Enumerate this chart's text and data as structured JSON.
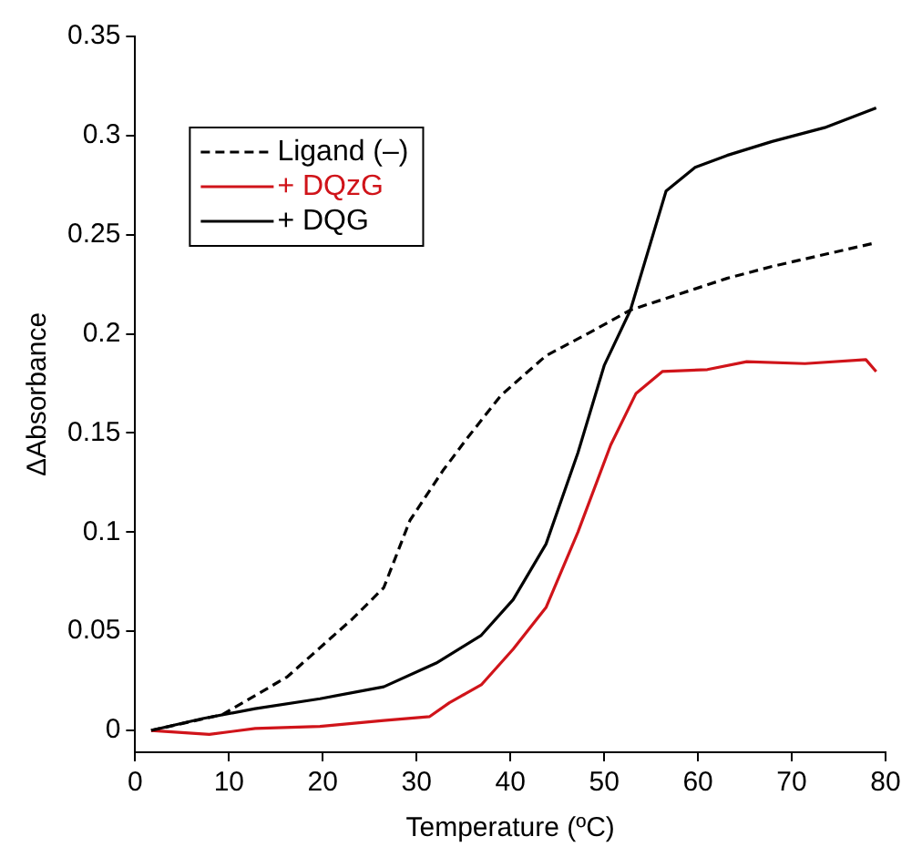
{
  "chart_data": {
    "type": "line",
    "xlabel": "Temperature (ºC)",
    "ylabel": "ΔAbsorbance",
    "xlim": [
      0,
      80
    ],
    "xticks": [
      0,
      10,
      20,
      30,
      40,
      50,
      60,
      70,
      80
    ],
    "ylim": [
      -0.011,
      0.35
    ],
    "yticks": [
      0,
      0.05,
      0.1,
      0.15,
      0.2,
      0.25,
      0.3,
      0.35
    ],
    "grid": false,
    "legend": "top left",
    "marker": "none",
    "series": [
      {
        "name": "Ligand (–)",
        "color": "#000000",
        "line_style": "dashed",
        "x": [
          1.7,
          9.3,
          16.2,
          23.1,
          26.5,
          29.3,
          32.8,
          35.5,
          39,
          43.8,
          48.6,
          52.8,
          63.1,
          67.9,
          79
        ],
        "values": [
          0,
          0.008,
          0.027,
          0.056,
          0.072,
          0.106,
          0.131,
          0.148,
          0.169,
          0.189,
          0.201,
          0.212,
          0.228,
          0.234,
          0.246
        ]
      },
      {
        "name": "+ DQzG",
        "color": "#d0141a",
        "line_style": "solid",
        "x": [
          1.7,
          7.9,
          12.8,
          19.7,
          26.5,
          31.4,
          33.5,
          36.9,
          40.3,
          43.8,
          47.2,
          50.7,
          53.4,
          56.2,
          61,
          65.2,
          71.4,
          77.9,
          79
        ],
        "values": [
          0,
          -0.002,
          0.001,
          0.002,
          0.005,
          0.007,
          0.014,
          0.023,
          0.041,
          0.062,
          0.1,
          0.144,
          0.17,
          0.181,
          0.182,
          0.186,
          0.185,
          0.187,
          0.181
        ]
      },
      {
        "name": "+ DQG",
        "color": "#000000",
        "line_style": "solid",
        "x": [
          1.7,
          7.2,
          12.8,
          19.7,
          26.5,
          32.1,
          36.9,
          40.3,
          43.8,
          47.2,
          50,
          52.8,
          56.6,
          59.7,
          63.1,
          67.9,
          73.5,
          79
        ],
        "values": [
          0,
          0.006,
          0.011,
          0.016,
          0.022,
          0.034,
          0.048,
          0.066,
          0.094,
          0.14,
          0.184,
          0.212,
          0.272,
          0.284,
          0.29,
          0.297,
          0.304,
          0.314
        ]
      }
    ]
  }
}
